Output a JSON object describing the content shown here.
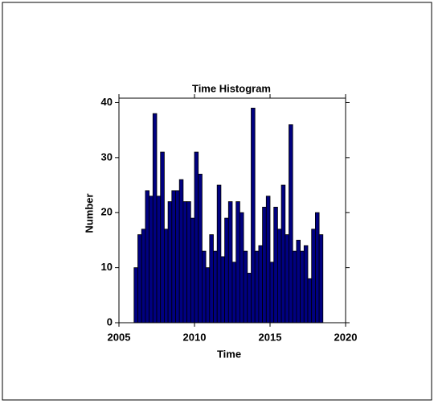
{
  "chart_data": {
    "type": "histogram",
    "title": "Time Histogram",
    "x_label": "Time",
    "y_label": "Number",
    "bins": [
      2006,
      2006.25,
      2006.5,
      2006.75,
      2007,
      2007.25,
      2007.5,
      2007.75,
      2008,
      2008.25,
      2008.5,
      2008.75,
      2009,
      2009.25,
      2009.5,
      2009.75,
      2010,
      2010.25,
      2010.5,
      2010.75,
      2011,
      2011.25,
      2011.5,
      2011.75,
      2012,
      2012.25,
      2012.5,
      2012.75,
      2013,
      2013.25,
      2013.5,
      2013.75,
      2014,
      2014.25,
      2014.5,
      2014.75,
      2015,
      2015.25,
      2015.5,
      2015.75,
      2016,
      2016.25,
      2016.5,
      2016.75,
      2017,
      2017.25,
      2017.5,
      2017.75,
      2018,
      2018.25,
      2018.5
    ],
    "values": [
      10,
      16,
      17,
      24,
      23,
      38,
      23,
      31,
      17,
      22,
      24,
      24,
      26,
      22,
      22,
      19,
      31,
      27,
      13,
      10,
      16,
      13,
      25,
      12,
      19,
      22,
      11,
      22,
      20,
      13,
      9,
      39,
      13,
      14,
      21,
      23,
      11,
      21,
      17,
      25,
      16,
      36,
      13,
      15,
      13,
      14,
      8,
      17,
      20,
      16
    ],
    "color": "#000080",
    "xlim": [
      2005,
      2020
    ],
    "xticks": [
      2005,
      2010,
      2015,
      2020
    ],
    "ylim": [
      0,
      40.8
    ],
    "yticks": [
      0,
      10,
      20,
      30,
      40
    ]
  }
}
